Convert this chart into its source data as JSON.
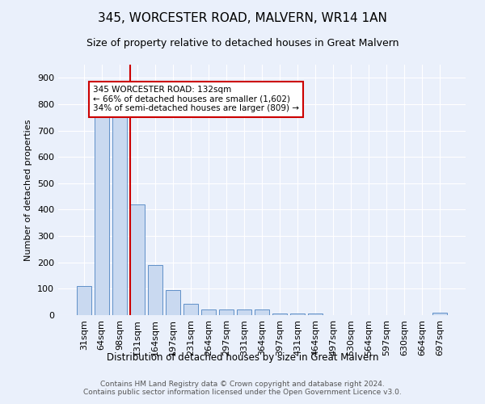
{
  "title1": "345, WORCESTER ROAD, MALVERN, WR14 1AN",
  "title2": "Size of property relative to detached houses in Great Malvern",
  "xlabel": "Distribution of detached houses by size in Great Malvern",
  "ylabel": "Number of detached properties",
  "bar_labels": [
    "31sqm",
    "64sqm",
    "98sqm",
    "131sqm",
    "164sqm",
    "197sqm",
    "231sqm",
    "264sqm",
    "297sqm",
    "331sqm",
    "364sqm",
    "397sqm",
    "431sqm",
    "464sqm",
    "497sqm",
    "530sqm",
    "564sqm",
    "597sqm",
    "630sqm",
    "664sqm",
    "697sqm"
  ],
  "bar_values": [
    110,
    750,
    750,
    420,
    190,
    95,
    43,
    22,
    22,
    20,
    22,
    5,
    5,
    5,
    0,
    0,
    0,
    0,
    0,
    0,
    8
  ],
  "property_bar_index": 3,
  "bar_color": "#c9d9f0",
  "bar_edge_color": "#6090c8",
  "highlight_line_color": "#cc0000",
  "background_color": "#eaf0fb",
  "grid_color": "#ffffff",
  "annotation_line1": "345 WORCESTER ROAD: 132sqm",
  "annotation_line2": "← 66% of detached houses are smaller (1,602)",
  "annotation_line3": "34% of semi-detached houses are larger (809) →",
  "annotation_box_color": "#ffffff",
  "annotation_box_edge": "#cc0000",
  "footer_line1": "Contains HM Land Registry data © Crown copyright and database right 2024.",
  "footer_line2": "Contains public sector information licensed under the Open Government Licence v3.0.",
  "ylim": [
    0,
    950
  ],
  "yticks": [
    0,
    100,
    200,
    300,
    400,
    500,
    600,
    700,
    800,
    900
  ]
}
